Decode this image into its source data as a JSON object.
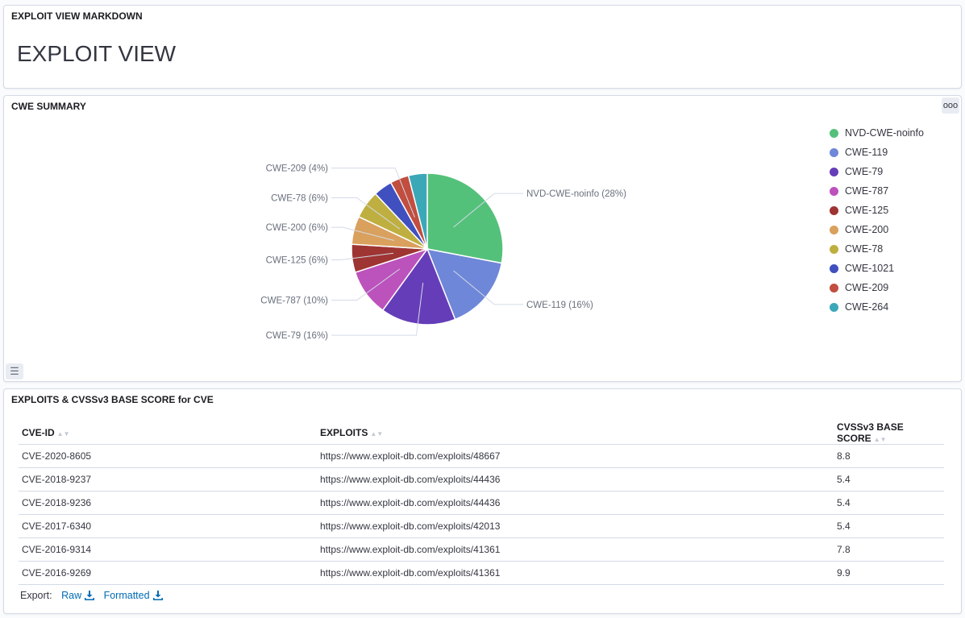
{
  "panels": {
    "markdown": {
      "title": "EXPLOIT VIEW MARKDOWN",
      "heading": "EXPLOIT VIEW"
    },
    "cwe_summary": {
      "title": "CWE SUMMARY",
      "menu_label": "ooo"
    },
    "table": {
      "title": "EXPLOITS & CVSSv3 BASE SCORE for CVE"
    }
  },
  "chart_data": {
    "type": "pie",
    "slices": [
      {
        "label": "NVD-CWE-noinfo",
        "value": 28,
        "color": "#54c17a"
      },
      {
        "label": "CWE-119",
        "value": 16,
        "color": "#6f87d8"
      },
      {
        "label": "CWE-79",
        "value": 16,
        "color": "#663db8"
      },
      {
        "label": "CWE-787",
        "value": 10,
        "color": "#bc52bc"
      },
      {
        "label": "CWE-125",
        "value": 6,
        "color": "#9e3533"
      },
      {
        "label": "CWE-200",
        "value": 6,
        "color": "#daa05d"
      },
      {
        "label": "CWE-78",
        "value": 6,
        "color": "#bfaf40"
      },
      {
        "label": "CWE-1021",
        "value": 4,
        "color": "#4050bf"
      },
      {
        "label": "CWE-209",
        "value": 4,
        "color": "#c14e3f"
      },
      {
        "label": "CWE-264",
        "value": 4,
        "color": "#3ba8b8"
      }
    ],
    "label_texts": [
      "NVD-CWE-noinfo (28%)",
      "CWE-119 (16%)",
      "CWE-79 (16%)",
      "CWE-787 (10%)",
      "CWE-125 (6%)",
      "CWE-200 (6%)",
      "CWE-78 (6%)",
      "CWE-209 (4%)"
    ],
    "legend_placement": "right"
  },
  "exploits_table": {
    "headers": [
      "CVE-ID",
      "EXPLOITS",
      "CVSSv3 BASE SCORE"
    ],
    "rows": [
      [
        "CVE-2020-8605",
        "https://www.exploit-db.com/exploits/48667",
        "8.8"
      ],
      [
        "CVE-2018-9237",
        "https://www.exploit-db.com/exploits/44436",
        "5.4"
      ],
      [
        "CVE-2018-9236",
        "https://www.exploit-db.com/exploits/44436",
        "5.4"
      ],
      [
        "CVE-2017-6340",
        "https://www.exploit-db.com/exploits/42013",
        "5.4"
      ],
      [
        "CVE-2016-9314",
        "https://www.exploit-db.com/exploits/41361",
        "7.8"
      ],
      [
        "CVE-2016-9269",
        "https://www.exploit-db.com/exploits/41361",
        "9.9"
      ]
    ]
  },
  "export": {
    "label": "Export:",
    "raw": "Raw",
    "formatted": "Formatted"
  },
  "icons": {
    "menu": "options-icon",
    "legend_toggle": "list-icon",
    "download": "download-icon",
    "sort": "sort-icon"
  }
}
